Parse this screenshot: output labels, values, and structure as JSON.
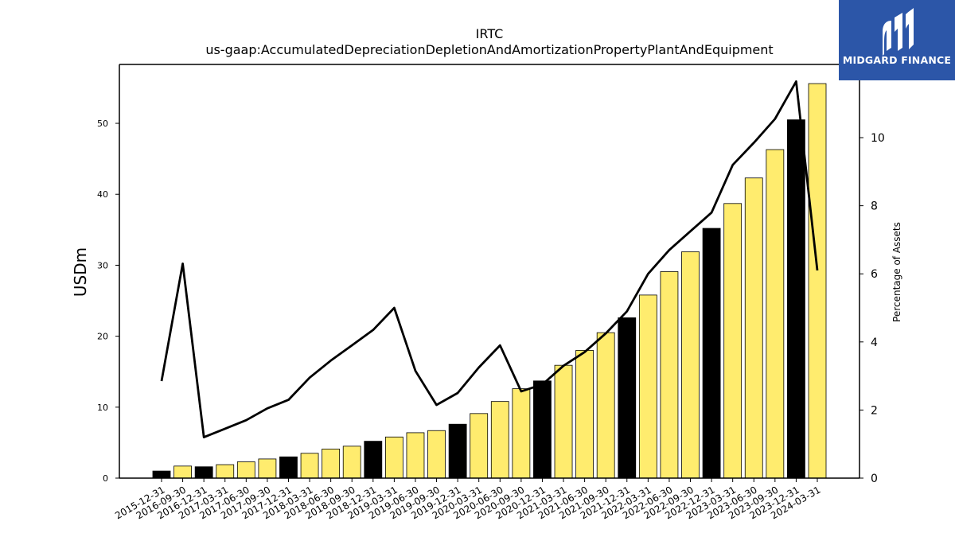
{
  "chart_data": {
    "type": "bar",
    "title": "IRTC",
    "subtitle": "us-gaap:AccumulatedDepreciationDepletionAndAmortizationPropertyPlantAndEquipment",
    "ylabel": "USDm",
    "y2label": "Percentage of Assets",
    "ylim": [
      0,
      58.3
    ],
    "y2lim": [
      0,
      12.15
    ],
    "yticks": [
      0,
      10,
      20,
      30,
      40,
      50
    ],
    "y2ticks": [
      0,
      2,
      4,
      6,
      8,
      10
    ],
    "categories": [
      "2015-12-31",
      "2016-09-30",
      "2016-12-31",
      "2017-03-31",
      "2017-06-30",
      "2017-09-30",
      "2017-12-31",
      "2018-03-31",
      "2018-06-30",
      "2018-09-30",
      "2018-12-31",
      "2019-03-31",
      "2019-06-30",
      "2019-09-30",
      "2019-12-31",
      "2020-03-31",
      "2020-06-30",
      "2020-09-30",
      "2020-12-31",
      "2021-03-31",
      "2021-06-30",
      "2021-09-30",
      "2021-12-31",
      "2022-03-31",
      "2022-06-30",
      "2022-09-30",
      "2022-12-31",
      "2023-03-31",
      "2023-06-30",
      "2023-09-30",
      "2023-12-31",
      "2024-03-31"
    ],
    "series": [
      {
        "type": "bar",
        "values": [
          1.0,
          1.7,
          1.6,
          1.9,
          2.3,
          2.7,
          3.0,
          3.5,
          4.1,
          4.5,
          5.2,
          5.8,
          6.4,
          6.7,
          7.6,
          9.1,
          10.8,
          12.6,
          13.7,
          15.9,
          18.0,
          20.5,
          22.6,
          25.8,
          29.1,
          31.9,
          35.2,
          38.7,
          42.3,
          46.3,
          50.5,
          55.6
        ],
        "colors": [
          "#000000",
          "#ffec6e",
          "#000000",
          "#ffec6e",
          "#ffec6e",
          "#ffec6e",
          "#000000",
          "#ffec6e",
          "#ffec6e",
          "#ffec6e",
          "#000000",
          "#ffec6e",
          "#ffec6e",
          "#ffec6e",
          "#000000",
          "#ffec6e",
          "#ffec6e",
          "#ffec6e",
          "#000000",
          "#ffec6e",
          "#ffec6e",
          "#ffec6e",
          "#000000",
          "#ffec6e",
          "#ffec6e",
          "#ffec6e",
          "#000000",
          "#ffec6e",
          "#ffec6e",
          "#ffec6e",
          "#000000",
          "#ffec6e"
        ]
      },
      {
        "type": "line",
        "axis": "right",
        "color": "#000000",
        "values": [
          2.85,
          6.3,
          1.2,
          1.45,
          1.7,
          2.05,
          2.3,
          2.95,
          3.45,
          3.9,
          4.35,
          5.0,
          3.15,
          2.15,
          2.5,
          3.25,
          3.9,
          2.55,
          2.75,
          3.3,
          3.7,
          4.25,
          4.9,
          6.0,
          6.7,
          7.25,
          7.8,
          9.2,
          9.85,
          10.55,
          11.65,
          6.1
        ]
      }
    ],
    "grid": false,
    "legend": "none"
  },
  "branding": {
    "logo_text": "MIDGARD FINANCE",
    "logo_color": "#2c56a8"
  }
}
